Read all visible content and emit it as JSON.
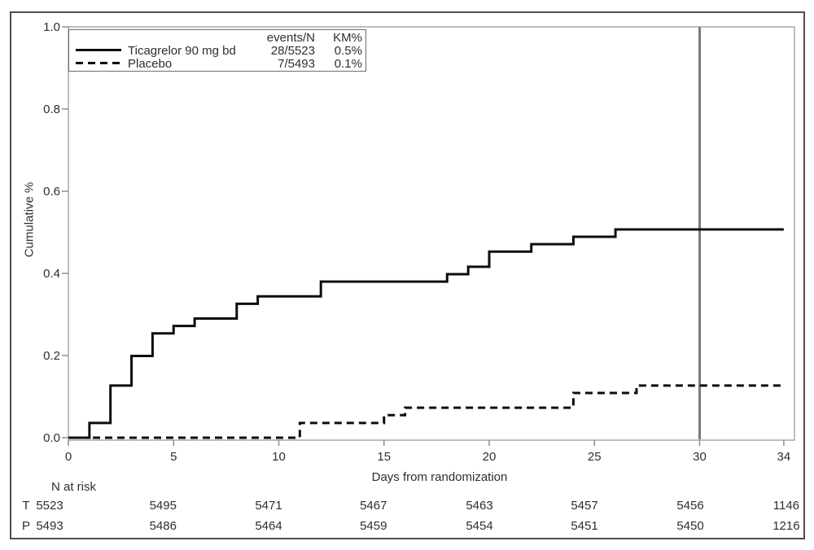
{
  "figure": {
    "kind": "kaplan-meier-cumulative-incidence-plot",
    "colors": {
      "curve": "#0d0d0d",
      "axis_frame": "#a9a9a9",
      "tick": "#8f8f8f",
      "reference_line": "#7a7a7a",
      "text": "#2e2e2e",
      "background": "#ffffff",
      "outer_border": "#4d4d4d"
    }
  },
  "legend": {
    "col_events": "events/N",
    "col_km": "KM%",
    "rows": [
      {
        "label": "Ticagrelor 90 mg bd",
        "style": "solid",
        "events_n": "28/5523",
        "km": "0.5%"
      },
      {
        "label": "Placebo",
        "style": "dashed",
        "events_n": "7/5493",
        "km": "0.1%"
      }
    ]
  },
  "chart_data": {
    "type": "line",
    "subtype": "step-function-km-curve",
    "title": "",
    "xlabel": "Days from randomization",
    "ylabel": "Cumulative %",
    "xlim": [
      0,
      34
    ],
    "ylim": [
      0,
      1.0
    ],
    "x_ticks": [
      0,
      5,
      10,
      15,
      20,
      25,
      30,
      34
    ],
    "x_tick_labels": [
      "0",
      "5",
      "10",
      "15",
      "20",
      "25",
      "30",
      "34"
    ],
    "y_ticks": [
      0.0,
      0.2,
      0.4,
      0.6,
      0.8,
      1.0
    ],
    "y_tick_labels": [
      "0.0",
      "0.2",
      "0.4",
      "0.6",
      "0.8",
      "1.0"
    ],
    "grid": false,
    "legend_position": "top-left-inside",
    "reference_line_x": 30,
    "series": [
      {
        "name": "Ticagrelor 90 mg bd",
        "line_style": "solid",
        "color": "#0d0d0d",
        "events_n": "28/5523",
        "km_pct": "0.5%",
        "steps": [
          [
            0,
            0
          ],
          [
            1,
            0.036
          ],
          [
            2,
            0.127
          ],
          [
            3,
            0.199
          ],
          [
            4,
            0.254
          ],
          [
            5,
            0.272
          ],
          [
            6,
            0.29
          ],
          [
            8,
            0.326
          ],
          [
            9,
            0.344
          ],
          [
            12,
            0.38
          ],
          [
            18,
            0.398
          ],
          [
            19,
            0.416
          ],
          [
            20,
            0.453
          ],
          [
            22,
            0.471
          ],
          [
            24,
            0.489
          ],
          [
            26,
            0.507
          ]
        ]
      },
      {
        "name": "Placebo",
        "line_style": "dashed",
        "color": "#0d0d0d",
        "events_n": "7/5493",
        "km_pct": "0.1%",
        "steps": [
          [
            0,
            0
          ],
          [
            11,
            0.036
          ],
          [
            15,
            0.055
          ],
          [
            16,
            0.073
          ],
          [
            24,
            0.109
          ],
          [
            27,
            0.127
          ]
        ]
      }
    ]
  },
  "n_at_risk": {
    "label": "N at risk",
    "columns_days": [
      0,
      5,
      10,
      15,
      20,
      25,
      30,
      34
    ],
    "rows": [
      {
        "label": "T",
        "values": [
          "5523",
          "5495",
          "5471",
          "5467",
          "5463",
          "5457",
          "5456",
          "1146"
        ]
      },
      {
        "label": "P",
        "values": [
          "5493",
          "5486",
          "5464",
          "5459",
          "5454",
          "5451",
          "5450",
          "1216"
        ]
      }
    ]
  }
}
